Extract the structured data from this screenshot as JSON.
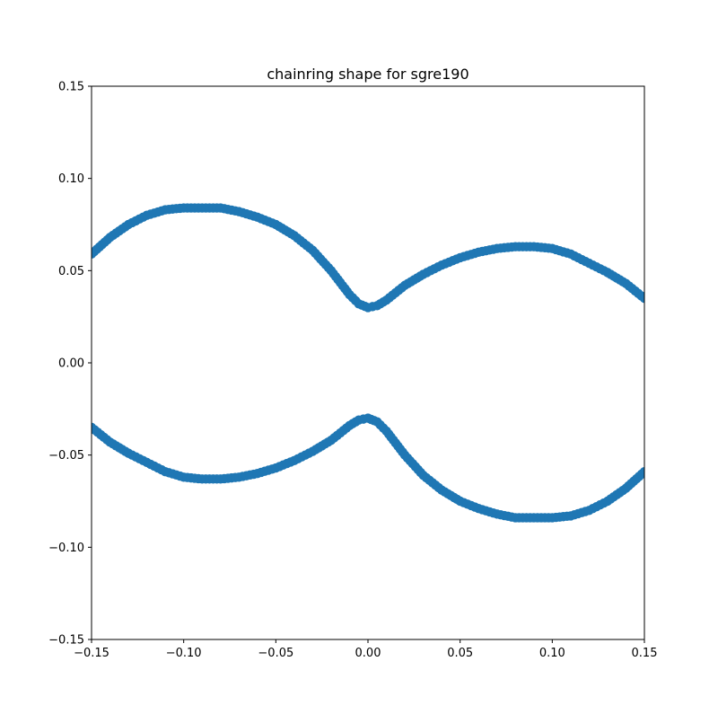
{
  "chart_data": {
    "type": "scatter",
    "title": "chainring shape for sgre190",
    "xlabel": "",
    "ylabel": "",
    "xlim": [
      -0.15,
      0.15
    ],
    "ylim": [
      -0.15,
      0.15
    ],
    "x_ticks": [
      -0.15,
      -0.1,
      -0.05,
      0.0,
      0.05,
      0.1,
      0.15
    ],
    "y_ticks": [
      -0.15,
      -0.1,
      -0.05,
      0.0,
      0.05,
      0.1,
      0.15
    ],
    "x_tick_labels": [
      "−0.15",
      "−0.10",
      "−0.05",
      "0.00",
      "0.05",
      "0.10",
      "0.15"
    ],
    "y_tick_labels": [
      "−0.15",
      "−0.10",
      "−0.05",
      "0.00",
      "0.05",
      "0.10",
      "0.15"
    ],
    "grid": false,
    "marker_color": "#1f77b4",
    "series": [
      {
        "x": [
          -0.15,
          -0.14,
          -0.13,
          -0.12,
          -0.11,
          -0.1,
          -0.09,
          -0.08,
          -0.07,
          -0.06,
          -0.05,
          -0.04,
          -0.03,
          -0.02,
          -0.01,
          -0.005,
          0.0,
          0.005,
          0.01,
          0.02,
          0.03,
          0.04,
          0.05,
          0.06,
          0.07,
          0.08,
          0.09,
          0.1,
          0.11,
          0.12,
          0.13,
          0.14,
          0.15
        ],
        "y": [
          0.059,
          0.068,
          0.075,
          0.08,
          0.083,
          0.084,
          0.084,
          0.084,
          0.082,
          0.079,
          0.075,
          0.069,
          0.061,
          0.05,
          0.037,
          0.032,
          0.03,
          0.031,
          0.034,
          0.042,
          0.048,
          0.053,
          0.057,
          0.06,
          0.062,
          0.063,
          0.063,
          0.062,
          0.059,
          0.054,
          0.049,
          0.043,
          0.035
        ]
      },
      {
        "x": [
          -0.15,
          -0.14,
          -0.13,
          -0.12,
          -0.11,
          -0.1,
          -0.09,
          -0.08,
          -0.07,
          -0.06,
          -0.05,
          -0.04,
          -0.03,
          -0.02,
          -0.01,
          -0.005,
          0.0,
          0.005,
          0.01,
          0.02,
          0.03,
          0.04,
          0.05,
          0.06,
          0.07,
          0.08,
          0.09,
          0.1,
          0.11,
          0.12,
          0.13,
          0.14,
          0.15
        ],
        "y": [
          -0.035,
          -0.043,
          -0.049,
          -0.054,
          -0.059,
          -0.062,
          -0.063,
          -0.063,
          -0.062,
          -0.06,
          -0.057,
          -0.053,
          -0.048,
          -0.042,
          -0.034,
          -0.031,
          -0.03,
          -0.032,
          -0.037,
          -0.05,
          -0.061,
          -0.069,
          -0.075,
          -0.079,
          -0.082,
          -0.084,
          -0.084,
          -0.084,
          -0.083,
          -0.08,
          -0.075,
          -0.068,
          -0.059
        ]
      }
    ]
  }
}
